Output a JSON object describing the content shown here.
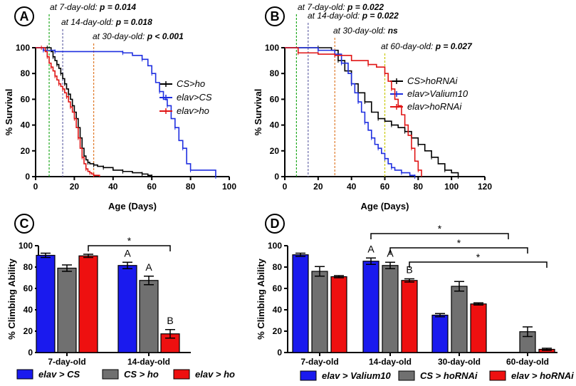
{
  "chart_data": [
    {
      "panel": "A",
      "type": "line",
      "subtype": "kaplan-meier",
      "xlabel": "Age (Days)",
      "ylabel": "% Survival",
      "xlim": [
        0,
        100
      ],
      "ylim": [
        0,
        100
      ],
      "xticks": [
        "0",
        "20",
        "40",
        "60",
        "80",
        "100"
      ],
      "yticks": [
        "0",
        "20",
        "40",
        "60",
        "80",
        "100"
      ],
      "legend_position": "right",
      "annotations": [
        {
          "text": "at 7-day-old: ",
          "p": "p = 0.014",
          "x": 7,
          "color": "#22aa22"
        },
        {
          "text": "at 14-day-old: ",
          "p": "p = 0.018",
          "x": 14,
          "color": "#6a6aaa"
        },
        {
          "text": "at 30-day-old: ",
          "p": "p < 0.001",
          "x": 30,
          "color": "#e07a2a"
        }
      ],
      "series": [
        {
          "name": "CS>ho",
          "color": "#000000",
          "x": [
            0,
            6,
            8,
            9,
            10,
            11,
            12,
            13,
            14,
            15,
            16,
            17,
            18,
            19,
            20,
            21,
            22,
            23,
            24,
            25,
            26,
            27,
            28,
            30,
            32,
            35,
            40,
            45,
            50,
            55,
            58,
            60
          ],
          "y": [
            100,
            100,
            97,
            93,
            90,
            87,
            84,
            80,
            76,
            72,
            68,
            64,
            60,
            55,
            50,
            45,
            38,
            30,
            22,
            16,
            13,
            11,
            10,
            9,
            8,
            7,
            5,
            4,
            3,
            2,
            1,
            0
          ]
        },
        {
          "name": "elav>CS",
          "color": "#1f2fe0",
          "x": [
            0,
            4,
            8,
            10,
            40,
            45,
            50,
            55,
            58,
            60,
            62,
            64,
            66,
            68,
            70,
            72,
            74,
            76,
            78,
            80,
            90,
            93
          ],
          "y": [
            100,
            98,
            98,
            97,
            97,
            96,
            94,
            91,
            86,
            80,
            73,
            66,
            60,
            55,
            45,
            38,
            28,
            22,
            10,
            5,
            5,
            0
          ]
        },
        {
          "name": "elav>ho",
          "color": "#e01515",
          "x": [
            0,
            3,
            5,
            6,
            7,
            8,
            9,
            10,
            11,
            12,
            13,
            14,
            15,
            16,
            17,
            18,
            19,
            20,
            21,
            22,
            23,
            24,
            25,
            26,
            27,
            28,
            29,
            30,
            33
          ],
          "y": [
            100,
            100,
            97,
            93,
            88,
            85,
            82,
            78,
            75,
            72,
            70,
            68,
            65,
            62,
            58,
            54,
            50,
            45,
            38,
            30,
            22,
            15,
            10,
            6,
            4,
            3,
            2,
            1,
            0
          ]
        }
      ]
    },
    {
      "panel": "B",
      "type": "line",
      "subtype": "kaplan-meier",
      "xlabel": "Age (Days)",
      "ylabel": "% Survival",
      "xlim": [
        0,
        120
      ],
      "ylim": [
        0,
        100
      ],
      "xticks": [
        "0",
        "20",
        "40",
        "60",
        "80",
        "100",
        "120"
      ],
      "yticks": [
        "0",
        "20",
        "40",
        "60",
        "80",
        "100"
      ],
      "legend_position": "right",
      "annotations": [
        {
          "text": "at 7-day-old: ",
          "p": "p = 0.022",
          "x": 7,
          "color": "#22aa22"
        },
        {
          "text": "at 14-day-old: ",
          "p": "p = 0.022",
          "x": 14,
          "color": "#6a6aaa"
        },
        {
          "text": "at 30-day-old: ",
          "p": "ns",
          "x": 30,
          "color": "#e07a2a"
        },
        {
          "text": "at 60-day-old: ",
          "p": "p = 0.027",
          "x": 60,
          "color": "#c8c800"
        }
      ],
      "series": [
        {
          "name": "CS>hoRNAi",
          "color": "#000000",
          "x": [
            0,
            20,
            28,
            32,
            36,
            40,
            44,
            48,
            52,
            56,
            60,
            64,
            68,
            72,
            76,
            80,
            84,
            88,
            92,
            96,
            100,
            104
          ],
          "y": [
            100,
            100,
            98,
            90,
            82,
            72,
            65,
            58,
            50,
            45,
            43,
            40,
            38,
            35,
            30,
            25,
            20,
            15,
            10,
            5,
            3,
            0
          ]
        },
        {
          "name": "elav>Valium10",
          "color": "#1f2fe0",
          "x": [
            0,
            20,
            30,
            34,
            38,
            40,
            42,
            44,
            46,
            48,
            50,
            52,
            54,
            56,
            58,
            60,
            62,
            64,
            66,
            70,
            75,
            78
          ],
          "y": [
            100,
            98,
            95,
            88,
            80,
            72,
            65,
            58,
            50,
            42,
            36,
            30,
            25,
            22,
            18,
            14,
            10,
            7,
            5,
            3,
            1,
            0
          ]
        },
        {
          "name": "elav>hoRNAi",
          "color": "#e01515",
          "x": [
            0,
            8,
            20,
            30,
            40,
            50,
            55,
            60,
            62,
            64,
            66,
            68,
            70,
            72,
            74,
            76,
            78,
            80,
            82
          ],
          "y": [
            100,
            96,
            95,
            94,
            90,
            87,
            85,
            80,
            74,
            68,
            60,
            55,
            48,
            40,
            32,
            22,
            12,
            5,
            0
          ]
        }
      ]
    },
    {
      "panel": "C",
      "type": "bar",
      "ylabel": "% Climbing Ability",
      "ylim": [
        0,
        100
      ],
      "yticks": [
        "0",
        "20",
        "40",
        "60",
        "80",
        "100"
      ],
      "categories": [
        "7-day-old",
        "14-day-old"
      ],
      "series": [
        {
          "name": "elav > CS",
          "color": "#1a1aee",
          "values": [
            91,
            81.5
          ],
          "err": [
            2,
            3
          ]
        },
        {
          "name": "CS > ho",
          "color": "#707070",
          "values": [
            79,
            67.5
          ],
          "err": [
            3,
            4
          ]
        },
        {
          "name": "elav > ho",
          "color": "#ee1010",
          "values": [
            90.5,
            17.5
          ],
          "err": [
            1.5,
            4
          ]
        }
      ],
      "bar_letters": [
        {
          "category": 1,
          "series": 0,
          "text": "A"
        },
        {
          "category": 1,
          "series": 1,
          "text": "A"
        },
        {
          "category": 1,
          "series": 2,
          "text": "B"
        }
      ],
      "significance": [
        {
          "from": [
            0,
            2
          ],
          "to": [
            1,
            2
          ],
          "text": "*"
        }
      ]
    },
    {
      "panel": "D",
      "type": "bar",
      "ylabel": "% Climbing Ability",
      "ylim": [
        0,
        100
      ],
      "yticks": [
        "0",
        "20",
        "40",
        "60",
        "80",
        "100"
      ],
      "categories": [
        "7-day-old",
        "14-day-old",
        "30-day-old",
        "60-day-old"
      ],
      "series": [
        {
          "name": "elav > Valium10",
          "color": "#1a1aee",
          "values": [
            91.5,
            85.5,
            35,
            null
          ],
          "err": [
            1.5,
            3,
            1.5,
            0
          ]
        },
        {
          "name": "CS > hoRNAi",
          "color": "#707070",
          "values": [
            76,
            81.5,
            62,
            19.5
          ],
          "err": [
            4.5,
            3,
            4.5,
            4.5
          ]
        },
        {
          "name": "elav > hoRNAi",
          "color": "#ee1010",
          "values": [
            71,
            67.5,
            45.5,
            3
          ],
          "err": [
            1,
            1.5,
            1,
            1
          ]
        }
      ],
      "bar_letters": [
        {
          "category": 1,
          "series": 0,
          "text": "A"
        },
        {
          "category": 1,
          "series": 1,
          "text": "A"
        },
        {
          "category": 1,
          "series": 2,
          "text": "B"
        }
      ],
      "significance": [
        {
          "from": [
            1,
            0
          ],
          "to": [
            3,
            0
          ],
          "text": "*"
        },
        {
          "from": [
            1,
            1
          ],
          "to": [
            3,
            1
          ],
          "text": "*"
        },
        {
          "from": [
            1,
            2
          ],
          "to": [
            3,
            2
          ],
          "text": "*"
        }
      ]
    }
  ]
}
